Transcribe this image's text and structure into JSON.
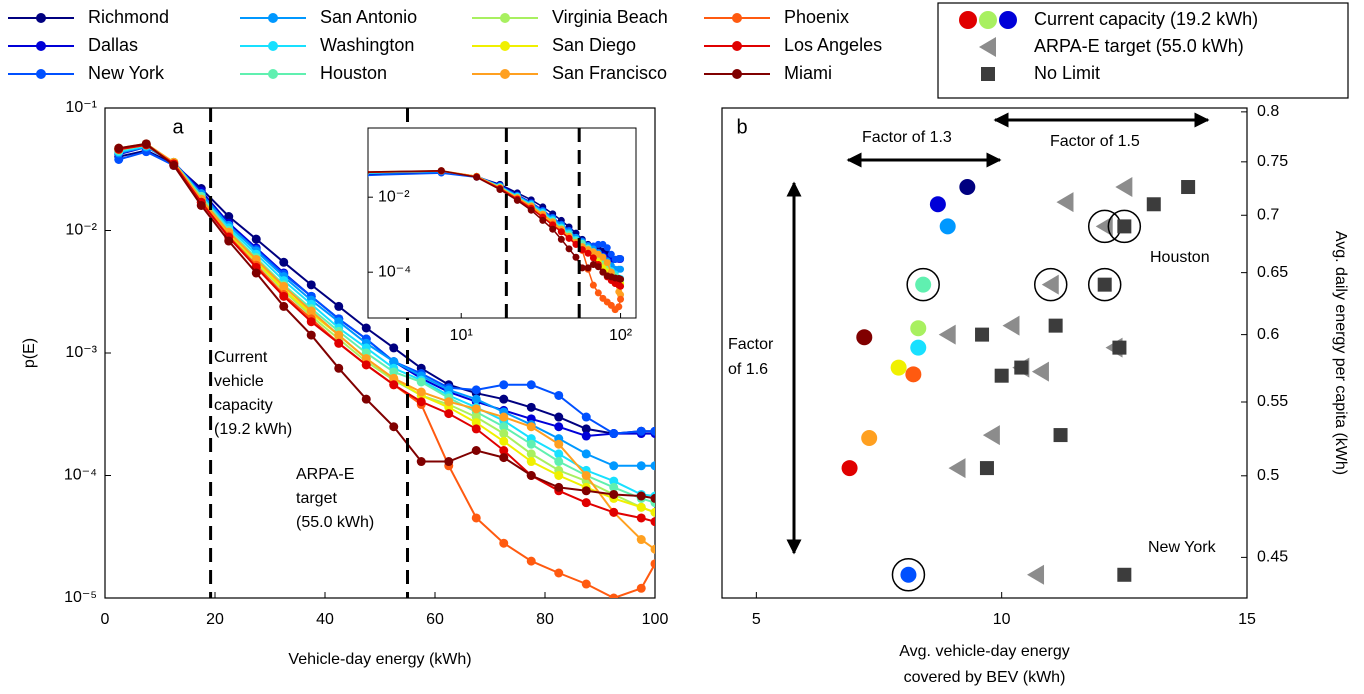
{
  "chart_data": [
    {
      "type": "line",
      "label": "a",
      "xlabel": "Vehicle-day energy (kWh)",
      "ylabel": "p(E)",
      "log_y": true,
      "x": [
        2.5,
        7.5,
        12.5,
        17.5,
        22.5,
        27.5,
        32.5,
        37.5,
        42.5,
        47.5,
        52.5,
        57.5,
        62.5,
        67.5,
        72.5,
        77.5,
        82.5,
        87.5,
        92.5,
        97.5,
        100
      ],
      "xlim": [
        0,
        100
      ],
      "xticks": [
        0,
        20,
        40,
        60,
        80,
        100
      ],
      "ylim": [
        1e-05,
        0.1
      ],
      "yticks": [
        {
          "value": 1e-05,
          "label": "10⁻⁵"
        },
        {
          "value": 0.0001,
          "label": "10⁻⁴"
        },
        {
          "value": 0.001,
          "label": "10⁻³"
        },
        {
          "value": 0.01,
          "label": "10⁻²"
        },
        {
          "value": 0.1,
          "label": "10⁻¹"
        }
      ],
      "series": [
        {
          "name": "Richmond",
          "color": "#000080",
          "values": [
            0.04,
            0.045,
            0.035,
            0.022,
            0.013,
            0.0085,
            0.0055,
            0.0036,
            0.0024,
            0.0016,
            0.0011,
            0.00075,
            0.00055,
            0.00047,
            0.00042,
            0.00036,
            0.0003,
            0.00024,
            0.00022,
            0.00023,
            0.00023
          ]
        },
        {
          "name": "Dallas",
          "color": "#0000d8",
          "values": [
            0.042,
            0.048,
            0.036,
            0.021,
            0.0115,
            0.0072,
            0.0045,
            0.0029,
            0.0019,
            0.0013,
            0.00085,
            0.00062,
            0.00048,
            0.0004,
            0.00034,
            0.00029,
            0.00025,
            0.00021,
            0.00022,
            0.00022,
            0.00022
          ]
        },
        {
          "name": "New York",
          "color": "#0050ff",
          "values": [
            0.038,
            0.044,
            0.034,
            0.02,
            0.011,
            0.007,
            0.0044,
            0.0029,
            0.0019,
            0.0013,
            0.00085,
            0.00068,
            0.00052,
            0.0005,
            0.00055,
            0.00055,
            0.00045,
            0.0003,
            0.00022,
            0.00023,
            0.00023
          ]
        },
        {
          "name": "San Antonio",
          "color": "#0098ff",
          "values": [
            0.043,
            0.048,
            0.036,
            0.02,
            0.011,
            0.0068,
            0.0042,
            0.0027,
            0.0018,
            0.0012,
            0.00085,
            0.00065,
            0.0005,
            0.00042,
            0.00033,
            0.00026,
            0.0002,
            0.00015,
            0.00012,
            0.00012,
            0.00012
          ]
        },
        {
          "name": "Washington",
          "color": "#18e0ff",
          "values": [
            0.044,
            0.049,
            0.036,
            0.019,
            0.0105,
            0.0064,
            0.0039,
            0.0025,
            0.0016,
            0.0011,
            0.00075,
            0.0006,
            0.00045,
            0.00036,
            0.00028,
            0.0002,
            0.00015,
            0.00011,
            9e-05,
            7e-05,
            6.8e-05
          ]
        },
        {
          "name": "Houston",
          "color": "#60f0b0",
          "values": [
            0.045,
            0.05,
            0.036,
            0.019,
            0.01,
            0.006,
            0.0036,
            0.0023,
            0.0015,
            0.001,
            0.0007,
            0.00058,
            0.00043,
            0.00033,
            0.00025,
            0.00018,
            0.00013,
            0.0001,
            8e-05,
            6.5e-05,
            6e-05
          ]
        },
        {
          "name": "Virginia Beach",
          "color": "#a8f060",
          "values": [
            0.046,
            0.05,
            0.036,
            0.018,
            0.0095,
            0.0055,
            0.0032,
            0.002,
            0.0013,
            0.00085,
            0.0006,
            0.00045,
            0.00038,
            0.0003,
            0.00022,
            0.00015,
            0.00011,
            9e-05,
            7e-05,
            5.5e-05,
            5e-05
          ]
        },
        {
          "name": "San Diego",
          "color": "#f0f000",
          "values": [
            0.046,
            0.05,
            0.036,
            0.018,
            0.0095,
            0.0056,
            0.0033,
            0.0021,
            0.0014,
            0.0009,
            0.00062,
            0.00045,
            0.00036,
            0.00027,
            0.00019,
            0.00013,
            0.0001,
            8e-05,
            6.5e-05,
            5.5e-05,
            5e-05
          ]
        },
        {
          "name": "San Francisco",
          "color": "#ffa020",
          "values": [
            0.047,
            0.051,
            0.036,
            0.018,
            0.0097,
            0.0058,
            0.0035,
            0.0022,
            0.0014,
            0.0009,
            0.00062,
            0.00048,
            0.0004,
            0.00035,
            0.0003,
            0.00025,
            0.00018,
            0.0001,
            5e-05,
            3e-05,
            2.5e-05
          ]
        },
        {
          "name": "Phoenix",
          "color": "#ff5a10",
          "values": [
            0.046,
            0.05,
            0.035,
            0.017,
            0.009,
            0.0052,
            0.003,
            0.0019,
            0.0012,
            0.0008,
            0.00055,
            0.00038,
            0.00012,
            4.5e-05,
            2.8e-05,
            2e-05,
            1.6e-05,
            1.3e-05,
            1e-05,
            1.2e-05,
            1.9e-05
          ]
        },
        {
          "name": "Los Angeles",
          "color": "#e00000",
          "values": [
            0.046,
            0.05,
            0.035,
            0.017,
            0.0088,
            0.005,
            0.0029,
            0.0018,
            0.0012,
            0.0008,
            0.00055,
            0.0004,
            0.00032,
            0.00024,
            0.00016,
            0.0001,
            7.5e-05,
            6e-05,
            5e-05,
            4.5e-05,
            4.2e-05
          ]
        },
        {
          "name": "Miami",
          "color": "#800000",
          "values": [
            0.047,
            0.051,
            0.034,
            0.016,
            0.0082,
            0.0045,
            0.0024,
            0.0014,
            0.00075,
            0.00042,
            0.00025,
            0.00013,
            0.00013,
            0.00016,
            0.00014,
            0.0001,
            8e-05,
            7.5e-05,
            7e-05,
            6.8e-05,
            6.5e-05
          ]
        }
      ],
      "vlines": [
        {
          "value": 19.2,
          "label": [
            "Current",
            "vehicle",
            "capacity",
            "(19.2 kWh)"
          ]
        },
        {
          "value": 55.0,
          "label": [
            "ARPA-E",
            "target",
            "(55.0 kWh)"
          ]
        }
      ],
      "inset": {
        "log_x": true,
        "log_y": true,
        "xlim": [
          2.6,
          125
        ],
        "ylim": [
          6e-06,
          0.7
        ],
        "xticks": [
          {
            "value": 10,
            "label": "10¹"
          },
          {
            "value": 100,
            "label": "10²"
          }
        ],
        "yticks": [
          {
            "value": 0.0001,
            "label": "10⁻⁴"
          },
          {
            "value": 0.01,
            "label": "10⁻²"
          }
        ]
      }
    },
    {
      "type": "scatter",
      "label": "b",
      "xlabel": [
        "Avg. vehicle-day energy",
        "covered by BEV (kWh)"
      ],
      "ylabel": "Avg. daily energy per capita (kWh)",
      "log_y": true,
      "xlim": [
        4.3,
        15
      ],
      "xticks": [
        5,
        10,
        15
      ],
      "ylim": [
        0.427,
        0.804
      ],
      "yticks": [
        0.45,
        0.5,
        0.55,
        0.6,
        0.65,
        0.7,
        0.75,
        0.8
      ],
      "highlight": [
        2,
        5
      ],
      "series": [
        {
          "name": "Current capacity (19.2 kWh)",
          "marker": "circle",
          "colors": [
            "#000080",
            "#0000d8",
            "#0050ff",
            "#0098ff",
            "#18e0ff",
            "#60f0b0",
            "#a8f060",
            "#f0f000",
            "#ffa020",
            "#ff5a10",
            "#e00000",
            "#800000"
          ],
          "x": [
            9.3,
            8.7,
            8.1,
            8.9,
            8.3,
            8.4,
            8.3,
            7.9,
            7.3,
            8.2,
            6.9,
            7.2
          ],
          "y": [
            0.726,
            0.71,
            0.44,
            0.69,
            0.59,
            0.64,
            0.605,
            0.575,
            0.525,
            0.57,
            0.505,
            0.598
          ]
        },
        {
          "name": "ARPA-E target (55.0 kWh)",
          "marker": "triangle",
          "color": "#8c8c8c",
          "x": [
            12.5,
            11.3,
            12.1,
            10.7,
            12.3,
            11.0,
            10.2,
            10.4,
            9.8,
            10.8,
            9.1,
            8.9
          ],
          "y": [
            0.726,
            0.712,
            0.69,
            0.44,
            0.59,
            0.64,
            0.607,
            0.575,
            0.527,
            0.572,
            0.505,
            0.6
          ]
        },
        {
          "name": "No Limit",
          "marker": "square",
          "color": "#3c3c3c",
          "x": [
            13.8,
            13.1,
            12.5,
            12.5,
            12.4,
            12.1,
            11.1,
            10.4,
            11.2,
            10.0,
            9.7,
            9.6
          ],
          "y": [
            0.726,
            0.71,
            0.69,
            0.44,
            0.59,
            0.64,
            0.607,
            0.575,
            0.527,
            0.569,
            0.505,
            0.6
          ]
        }
      ],
      "annotations": [
        "Factor of 1.3",
        "Factor of 1.5",
        [
          "Factor",
          "of 1.6"
        ],
        "Houston",
        "New York"
      ]
    }
  ]
}
